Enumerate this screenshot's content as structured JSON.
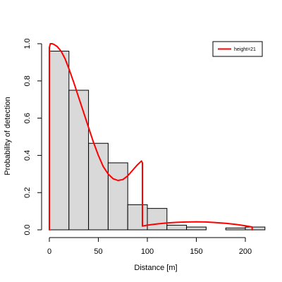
{
  "chart_data": {
    "type": "bar",
    "title": "",
    "xlabel": "Distance [m]",
    "ylabel": "Probability of detection",
    "xlim": [
      0,
      220
    ],
    "ylim": [
      0,
      1
    ],
    "grid": false,
    "legend_position": "top-right",
    "x_ticks": [
      0,
      50,
      100,
      150,
      200
    ],
    "y_ticks": [
      0.0,
      0.2,
      0.4,
      0.6,
      0.8,
      1.0
    ],
    "x_tick_labels": [
      "0",
      "50",
      "100",
      "150",
      "200"
    ],
    "y_tick_labels": [
      "0.0",
      "0.2",
      "0.4",
      "0.6",
      "0.8",
      "1.0"
    ],
    "bar_color": "#d9d9d9",
    "histogram": {
      "bins": [
        [
          0,
          20
        ],
        [
          20,
          40
        ],
        [
          40,
          60
        ],
        [
          60,
          80
        ],
        [
          80,
          100
        ],
        [
          100,
          120
        ],
        [
          120,
          140
        ],
        [
          140,
          160
        ],
        [
          160,
          180
        ],
        [
          180,
          200
        ],
        [
          200,
          220
        ]
      ],
      "values": [
        0.96,
        0.75,
        0.465,
        0.36,
        0.135,
        0.115,
        0.025,
        0.015,
        0.0,
        0.01,
        0.015
      ]
    },
    "series": [
      {
        "name": "height=21",
        "type": "line",
        "color": "#ff0000",
        "x": [
          0,
          0,
          1,
          3,
          5,
          8,
          12,
          16,
          20,
          25,
          30,
          35,
          40,
          45,
          50,
          55,
          60,
          65,
          70,
          75,
          80,
          85,
          90,
          94,
          95,
          95,
          100,
          110,
          120,
          130,
          140,
          150,
          160,
          170,
          180,
          190,
          200,
          207,
          207
        ],
        "y": [
          0,
          0.98,
          1.0,
          1.0,
          0.995,
          0.985,
          0.96,
          0.92,
          0.865,
          0.79,
          0.71,
          0.63,
          0.55,
          0.47,
          0.4,
          0.34,
          0.3,
          0.275,
          0.265,
          0.27,
          0.29,
          0.32,
          0.35,
          0.37,
          0.36,
          0.02,
          0.025,
          0.032,
          0.037,
          0.04,
          0.042,
          0.043,
          0.042,
          0.039,
          0.035,
          0.029,
          0.022,
          0.015,
          0
        ]
      }
    ]
  }
}
